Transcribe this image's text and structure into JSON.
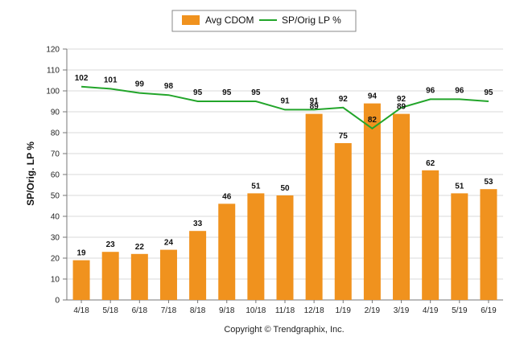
{
  "chart_data": {
    "type": "bar",
    "categories": [
      "4/18",
      "5/18",
      "6/18",
      "7/18",
      "8/18",
      "9/18",
      "10/18",
      "11/18",
      "12/18",
      "1/19",
      "2/19",
      "3/19",
      "4/19",
      "5/19",
      "6/19"
    ],
    "series": [
      {
        "name": "Avg CDOM",
        "type": "bar",
        "color": "#f0921e",
        "values": [
          19,
          23,
          22,
          24,
          33,
          46,
          51,
          50,
          89,
          75,
          94,
          89,
          62,
          51,
          53
        ]
      },
      {
        "name": "SP/Orig LP %",
        "type": "line",
        "color": "#22a52a",
        "values": [
          102,
          101,
          99,
          98,
          95,
          95,
          95,
          91,
          91,
          92,
          82,
          92,
          96,
          96,
          95
        ]
      }
    ],
    "ylabel": "SP/Orig. LP %",
    "xlabel": "",
    "ylim": [
      0,
      120
    ],
    "yticks": [
      0,
      10,
      20,
      30,
      40,
      50,
      60,
      70,
      80,
      90,
      100,
      110,
      120
    ],
    "grid": true,
    "legend_position": "top-center"
  },
  "footer": "Copyright © Trendgraphix, Inc."
}
